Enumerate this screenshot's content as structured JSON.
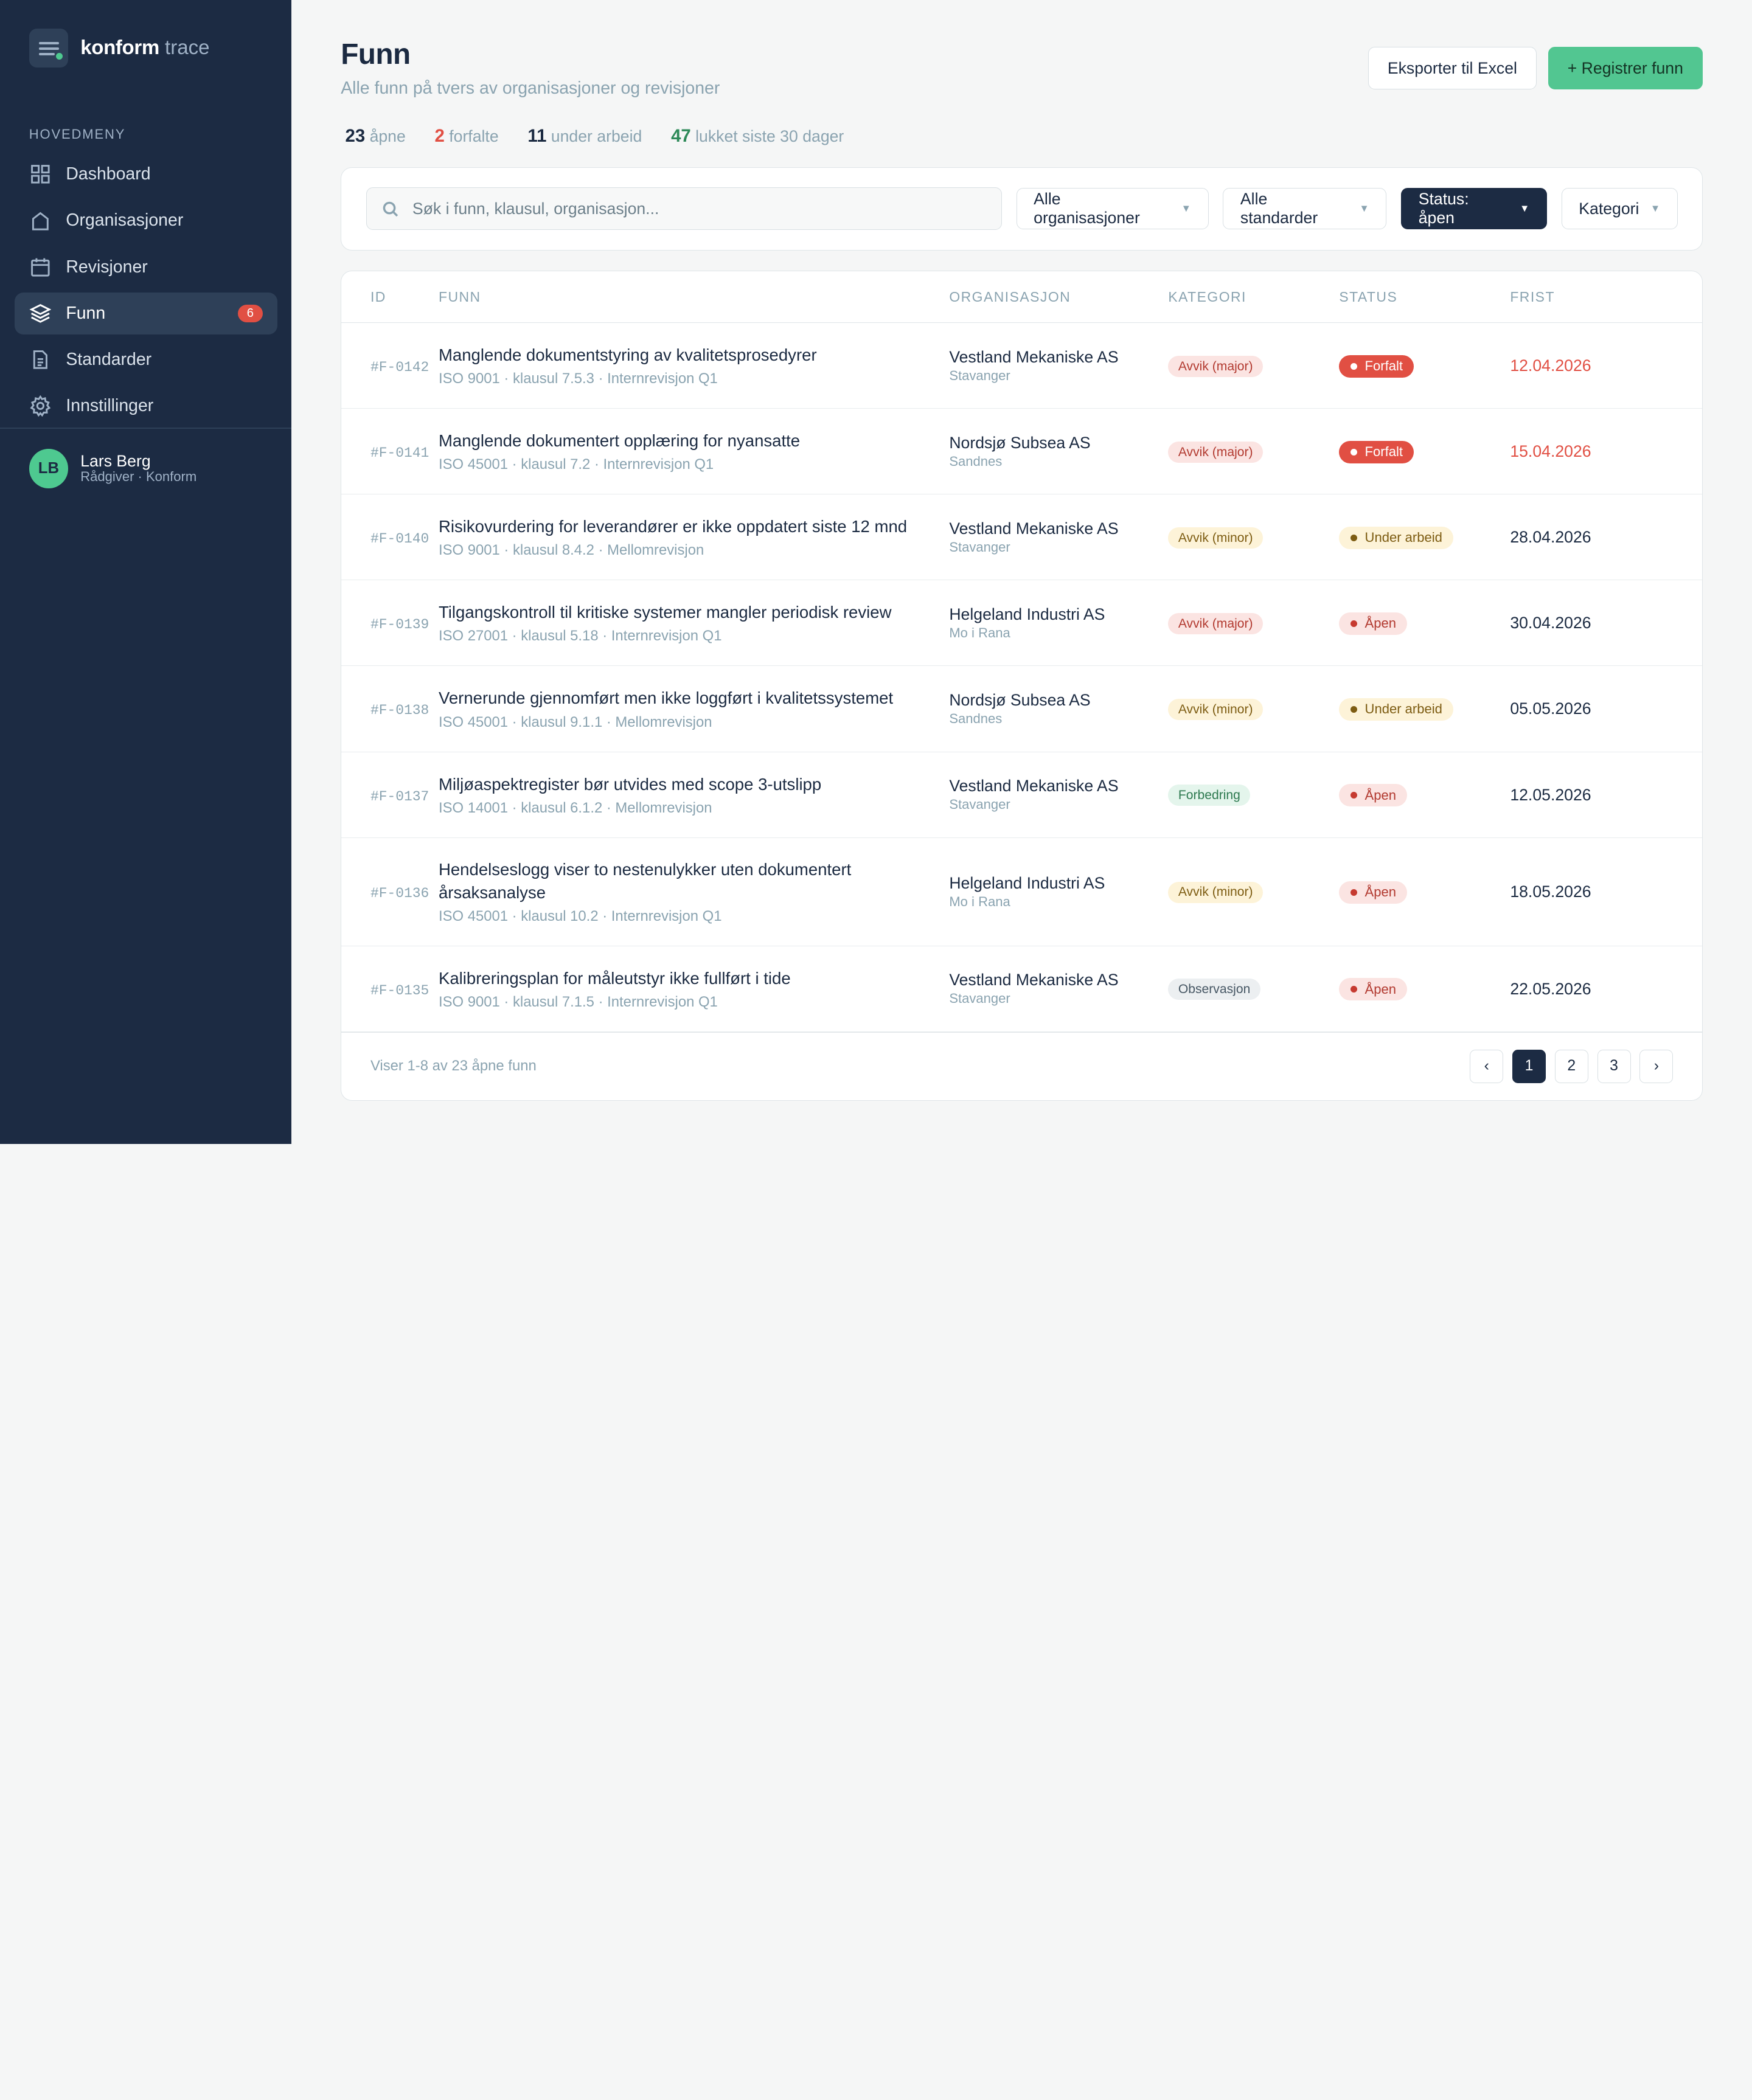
{
  "brand": {
    "name": "konform",
    "suffix": "trace"
  },
  "sidebar": {
    "heading": "HOVEDMENY",
    "items": [
      {
        "label": "Dashboard",
        "icon": "grid-icon"
      },
      {
        "label": "Organisasjoner",
        "icon": "building-icon"
      },
      {
        "label": "Revisjoner",
        "icon": "calendar-icon"
      },
      {
        "label": "Funn",
        "icon": "layers-icon",
        "badge": "6",
        "active": true
      },
      {
        "label": "Standarder",
        "icon": "document-icon"
      },
      {
        "label": "Innstillinger",
        "icon": "gear-icon"
      }
    ],
    "user": {
      "initials": "LB",
      "name": "Lars Berg",
      "role": "Rådgiver · Konform"
    }
  },
  "header": {
    "title": "Funn",
    "subtitle": "Alle funn på tvers av organisasjoner og revisjoner",
    "export_label": "Eksporter til Excel",
    "register_label": "+ Registrer funn"
  },
  "stats": [
    {
      "value": "23",
      "label": "åpne"
    },
    {
      "value": "2",
      "label": "forfalte"
    },
    {
      "value": "11",
      "label": "under arbeid"
    },
    {
      "value": "47",
      "label": "lukket siste 30 dager"
    }
  ],
  "filters": {
    "search_placeholder": "Søk i funn, klausul, organisasjon...",
    "org": "Alle organisasjoner",
    "standard": "Alle standarder",
    "status": "Status: åpen",
    "category": "Kategori"
  },
  "table": {
    "columns": [
      "ID",
      "FUNN",
      "ORGANISASJON",
      "KATEGORI",
      "STATUS",
      "FRIST"
    ],
    "rows": [
      {
        "id": "#F-0142",
        "title": "Manglende dokumentstyring av kvalitetsprosedyrer",
        "meta": "ISO 9001 · klausul 7.5.3 · Internrevisjon Q1",
        "org": "Vestland Mekaniske AS",
        "city": "Stavanger",
        "category": "Avvik (major)",
        "status": "Forfalt",
        "due": "12.04.2026"
      },
      {
        "id": "#F-0141",
        "title": "Manglende dokumentert opplæring for nyansatte",
        "meta": "ISO 45001 · klausul 7.2 · Internrevisjon Q1",
        "org": "Nordsjø Subsea AS",
        "city": "Sandnes",
        "category": "Avvik (major)",
        "status": "Forfalt",
        "due": "15.04.2026"
      },
      {
        "id": "#F-0140",
        "title": "Risikovurdering for leverandører er ikke oppdatert siste 12 mnd",
        "meta": "ISO 9001 · klausul 8.4.2 · Mellomrevisjon",
        "org": "Vestland Mekaniske AS",
        "city": "Stavanger",
        "category": "Avvik (minor)",
        "status": "Under arbeid",
        "due": "28.04.2026"
      },
      {
        "id": "#F-0139",
        "title": "Tilgangskontroll til kritiske systemer mangler periodisk review",
        "meta": "ISO 27001 · klausul 5.18 · Internrevisjon Q1",
        "org": "Helgeland Industri AS",
        "city": "Mo i Rana",
        "category": "Avvik (major)",
        "status": "Åpen",
        "due": "30.04.2026"
      },
      {
        "id": "#F-0138",
        "title": "Vernerunde gjennomført men ikke loggført i kvalitetssystemet",
        "meta": "ISO 45001 · klausul 9.1.1 · Mellomrevisjon",
        "org": "Nordsjø Subsea AS",
        "city": "Sandnes",
        "category": "Avvik (minor)",
        "status": "Under arbeid",
        "due": "05.05.2026"
      },
      {
        "id": "#F-0137",
        "title": "Miljøaspektregister bør utvides med scope 3-utslipp",
        "meta": "ISO 14001 · klausul 6.1.2 · Mellomrevisjon",
        "org": "Vestland Mekaniske AS",
        "city": "Stavanger",
        "category": "Forbedring",
        "status": "Åpen",
        "due": "12.05.2026"
      },
      {
        "id": "#F-0136",
        "title": "Hendelseslogg viser to nestenulykker uten dokumentert årsaksanalyse",
        "meta": "ISO 45001 · klausul 10.2 · Internrevisjon Q1",
        "org": "Helgeland Industri AS",
        "city": "Mo i Rana",
        "category": "Avvik (minor)",
        "status": "Åpen",
        "due": "18.05.2026"
      },
      {
        "id": "#F-0135",
        "title": "Kalibreringsplan for måleutstyr ikke fullført i tide",
        "meta": "ISO 9001 · klausul 7.1.5 · Internrevisjon Q1",
        "org": "Vestland Mekaniske AS",
        "city": "Stavanger",
        "category": "Observasjon",
        "status": "Åpen",
        "due": "22.05.2026"
      }
    ],
    "footer_text": "Viser 1-8 av 23 åpne funn",
    "pager": {
      "prev": "‹",
      "pages": [
        "1",
        "2",
        "3"
      ],
      "current": "1",
      "next": "›"
    }
  },
  "colors": {
    "sidebar_bg": "#1c2b43",
    "accent_green": "#52c691",
    "danger": "#e14f43"
  }
}
